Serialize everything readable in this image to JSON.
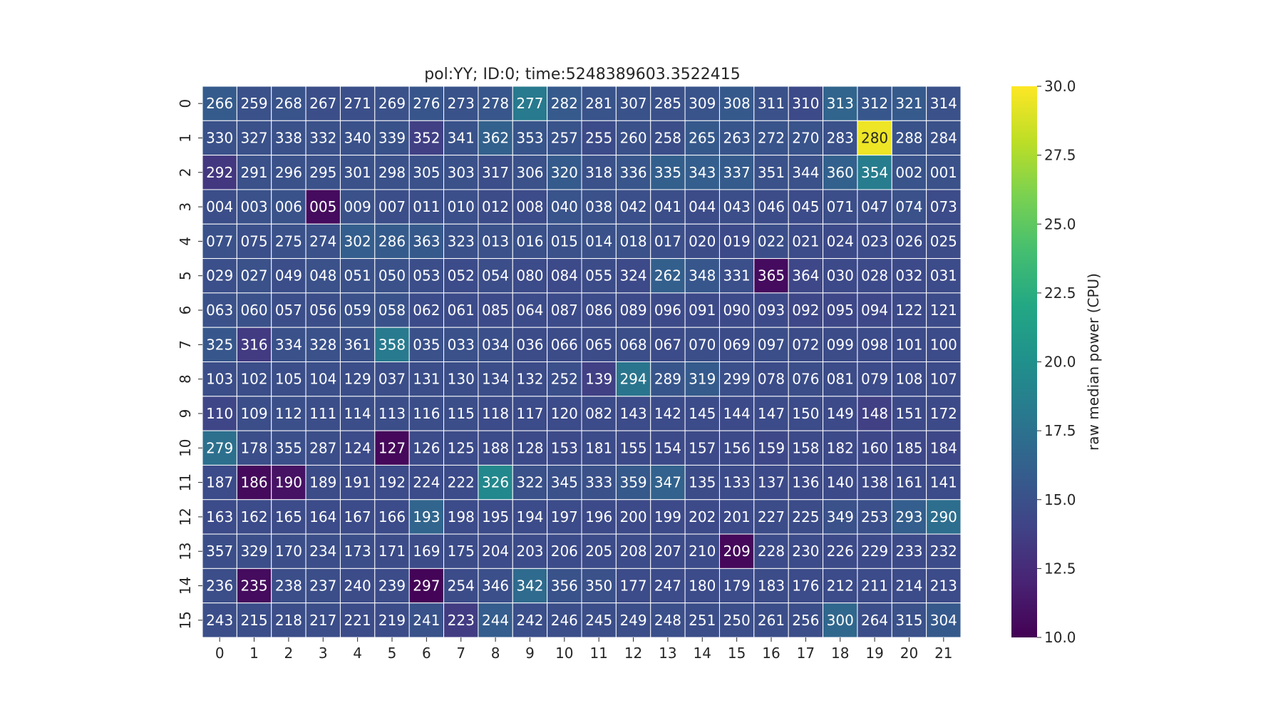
{
  "chart_data": {
    "type": "heatmap",
    "title": "pol:YY; ID:0; time:5248389603.3522415",
    "xlabel": "",
    "ylabel": "",
    "x_ticks": [
      "0",
      "1",
      "2",
      "3",
      "4",
      "5",
      "6",
      "7",
      "8",
      "9",
      "10",
      "11",
      "12",
      "13",
      "14",
      "15",
      "16",
      "17",
      "18",
      "19",
      "20",
      "21"
    ],
    "y_ticks": [
      "0",
      "1",
      "2",
      "3",
      "4",
      "5",
      "6",
      "7",
      "8",
      "9",
      "10",
      "11",
      "12",
      "13",
      "14",
      "15"
    ],
    "cell_labels": [
      [
        "266",
        "259",
        "268",
        "267",
        "271",
        "269",
        "276",
        "273",
        "278",
        "277",
        "282",
        "281",
        "307",
        "285",
        "309",
        "308",
        "311",
        "310",
        "313",
        "312",
        "321",
        "314"
      ],
      [
        "330",
        "327",
        "338",
        "332",
        "340",
        "339",
        "352",
        "341",
        "362",
        "353",
        "257",
        "255",
        "260",
        "258",
        "265",
        "263",
        "272",
        "270",
        "283",
        "280",
        "288",
        "284"
      ],
      [
        "292",
        "291",
        "296",
        "295",
        "301",
        "298",
        "305",
        "303",
        "317",
        "306",
        "320",
        "318",
        "336",
        "335",
        "343",
        "337",
        "351",
        "344",
        "360",
        "354",
        "002",
        "001"
      ],
      [
        "004",
        "003",
        "006",
        "005",
        "009",
        "007",
        "011",
        "010",
        "012",
        "008",
        "040",
        "038",
        "042",
        "041",
        "044",
        "043",
        "046",
        "045",
        "071",
        "047",
        "074",
        "073"
      ],
      [
        "077",
        "075",
        "275",
        "274",
        "302",
        "286",
        "363",
        "323",
        "013",
        "016",
        "015",
        "014",
        "018",
        "017",
        "020",
        "019",
        "022",
        "021",
        "024",
        "023",
        "026",
        "025"
      ],
      [
        "029",
        "027",
        "049",
        "048",
        "051",
        "050",
        "053",
        "052",
        "054",
        "080",
        "084",
        "055",
        "324",
        "262",
        "348",
        "331",
        "365",
        "364",
        "030",
        "028",
        "032",
        "031"
      ],
      [
        "063",
        "060",
        "057",
        "056",
        "059",
        "058",
        "062",
        "061",
        "085",
        "064",
        "087",
        "086",
        "089",
        "096",
        "091",
        "090",
        "093",
        "092",
        "095",
        "094",
        "122",
        "121"
      ],
      [
        "325",
        "316",
        "334",
        "328",
        "361",
        "358",
        "035",
        "033",
        "034",
        "036",
        "066",
        "065",
        "068",
        "067",
        "070",
        "069",
        "097",
        "072",
        "099",
        "098",
        "101",
        "100"
      ],
      [
        "103",
        "102",
        "105",
        "104",
        "129",
        "037",
        "131",
        "130",
        "134",
        "132",
        "252",
        "139",
        "294",
        "289",
        "319",
        "299",
        "078",
        "076",
        "081",
        "079",
        "108",
        "107"
      ],
      [
        "110",
        "109",
        "112",
        "111",
        "114",
        "113",
        "116",
        "115",
        "118",
        "117",
        "120",
        "082",
        "143",
        "142",
        "145",
        "144",
        "147",
        "150",
        "149",
        "148",
        "151",
        "172"
      ],
      [
        "279",
        "178",
        "355",
        "287",
        "124",
        "127",
        "126",
        "125",
        "188",
        "128",
        "153",
        "181",
        "155",
        "154",
        "157",
        "156",
        "159",
        "158",
        "182",
        "160",
        "185",
        "184"
      ],
      [
        "187",
        "186",
        "190",
        "189",
        "191",
        "192",
        "224",
        "222",
        "326",
        "322",
        "345",
        "333",
        "359",
        "347",
        "135",
        "133",
        "137",
        "136",
        "140",
        "138",
        "161",
        "141"
      ],
      [
        "163",
        "162",
        "165",
        "164",
        "167",
        "166",
        "193",
        "198",
        "195",
        "194",
        "197",
        "196",
        "200",
        "199",
        "202",
        "201",
        "227",
        "225",
        "349",
        "253",
        "293",
        "290"
      ],
      [
        "357",
        "329",
        "170",
        "234",
        "173",
        "171",
        "169",
        "175",
        "204",
        "203",
        "206",
        "205",
        "208",
        "207",
        "210",
        "209",
        "228",
        "230",
        "226",
        "229",
        "233",
        "232"
      ],
      [
        "236",
        "235",
        "238",
        "237",
        "240",
        "239",
        "297",
        "254",
        "346",
        "342",
        "356",
        "350",
        "177",
        "247",
        "180",
        "179",
        "183",
        "176",
        "212",
        "211",
        "214",
        "213"
      ],
      [
        "243",
        "215",
        "218",
        "217",
        "221",
        "219",
        "241",
        "223",
        "244",
        "242",
        "246",
        "245",
        "249",
        "248",
        "251",
        "250",
        "261",
        "256",
        "300",
        "264",
        "315",
        "304"
      ]
    ],
    "values": [
      [
        15.8,
        15.0,
        15.2,
        14.8,
        14.9,
        15.0,
        15.3,
        15.1,
        15.4,
        18.2,
        15.7,
        15.2,
        15.1,
        15.0,
        15.2,
        15.6,
        15.0,
        14.5,
        16.5,
        15.5,
        15.7,
        15.0
      ],
      [
        15.0,
        15.0,
        15.0,
        15.0,
        15.0,
        15.1,
        13.8,
        15.1,
        16.2,
        15.3,
        15.2,
        14.6,
        15.0,
        14.8,
        15.6,
        15.3,
        15.2,
        15.2,
        15.0,
        29.5,
        15.1,
        15.0
      ],
      [
        13.3,
        15.0,
        15.0,
        15.0,
        15.0,
        15.0,
        15.0,
        15.0,
        14.8,
        15.0,
        15.8,
        15.0,
        15.4,
        16.1,
        16.0,
        15.8,
        15.0,
        15.0,
        16.2,
        18.4,
        15.2,
        15.0
      ],
      [
        14.8,
        15.0,
        15.1,
        10.6,
        15.0,
        14.8,
        14.8,
        14.9,
        14.7,
        14.6,
        15.2,
        15.0,
        14.9,
        14.8,
        14.7,
        14.8,
        14.7,
        14.6,
        14.8,
        14.8,
        15.0,
        14.6
      ],
      [
        15.0,
        14.9,
        15.0,
        15.0,
        16.0,
        15.8,
        15.6,
        15.0,
        15.0,
        15.0,
        15.0,
        15.0,
        15.0,
        14.9,
        14.7,
        14.5,
        14.8,
        14.6,
        14.5,
        14.6,
        14.6,
        14.7
      ],
      [
        14.9,
        15.0,
        14.8,
        15.0,
        15.0,
        15.0,
        14.8,
        14.6,
        14.8,
        14.6,
        14.5,
        14.7,
        14.5,
        16.1,
        15.5,
        14.9,
        10.6,
        14.4,
        14.5,
        14.5,
        14.5,
        14.6
      ],
      [
        15.0,
        15.0,
        14.8,
        14.8,
        15.0,
        15.1,
        14.6,
        14.6,
        14.5,
        14.6,
        14.6,
        14.6,
        14.5,
        14.5,
        14.5,
        14.5,
        14.5,
        14.4,
        14.4,
        14.4,
        14.5,
        14.6
      ],
      [
        15.5,
        13.5,
        15.0,
        15.0,
        15.0,
        18.2,
        15.0,
        15.0,
        14.9,
        14.7,
        14.7,
        14.7,
        14.8,
        14.6,
        14.8,
        14.7,
        14.8,
        14.7,
        14.7,
        14.6,
        14.6,
        14.6
      ],
      [
        14.8,
        14.8,
        14.8,
        14.9,
        14.8,
        14.8,
        14.8,
        14.8,
        14.8,
        14.7,
        14.9,
        13.8,
        17.8,
        15.3,
        15.8,
        14.9,
        14.7,
        14.8,
        14.7,
        14.6,
        14.6,
        14.6
      ],
      [
        14.2,
        14.8,
        14.9,
        14.8,
        14.8,
        14.8,
        14.8,
        14.8,
        14.6,
        14.6,
        14.6,
        14.6,
        14.6,
        14.6,
        14.6,
        14.5,
        14.6,
        14.6,
        14.5,
        13.8,
        14.5,
        14.5
      ],
      [
        17.4,
        14.8,
        14.9,
        14.8,
        14.6,
        10.4,
        14.6,
        14.6,
        14.6,
        14.5,
        14.5,
        14.6,
        14.5,
        14.5,
        14.5,
        14.5,
        14.4,
        14.5,
        14.5,
        14.4,
        14.4,
        14.4
      ],
      [
        14.6,
        10.5,
        11.0,
        14.7,
        14.6,
        14.6,
        14.6,
        14.6,
        19.3,
        15.0,
        15.0,
        15.0,
        15.6,
        16.3,
        14.7,
        14.6,
        14.5,
        14.5,
        14.5,
        14.5,
        14.6,
        14.6
      ],
      [
        14.6,
        14.6,
        14.6,
        14.6,
        14.6,
        14.6,
        16.5,
        14.6,
        14.6,
        14.6,
        14.6,
        14.5,
        14.5,
        14.5,
        14.5,
        14.5,
        14.7,
        14.7,
        15.0,
        14.9,
        16.0,
        17.2
      ],
      [
        14.8,
        14.8,
        14.8,
        14.8,
        14.8,
        14.7,
        14.7,
        14.7,
        14.6,
        14.6,
        14.6,
        14.6,
        14.6,
        14.6,
        14.6,
        10.4,
        14.6,
        14.6,
        14.5,
        14.5,
        14.5,
        14.6
      ],
      [
        14.8,
        10.6,
        14.8,
        14.8,
        14.7,
        14.7,
        10.2,
        14.7,
        14.9,
        17.0,
        15.1,
        15.0,
        14.6,
        14.6,
        14.6,
        14.6,
        14.7,
        14.6,
        14.6,
        14.6,
        14.6,
        14.6
      ],
      [
        14.8,
        14.8,
        14.8,
        14.8,
        14.7,
        14.7,
        15.1,
        13.6,
        15.9,
        14.9,
        14.8,
        14.8,
        14.8,
        14.9,
        14.8,
        14.8,
        14.8,
        14.8,
        16.7,
        14.8,
        15.0,
        15.6
      ]
    ],
    "vmin": 10.0,
    "vmax": 30.0,
    "colormap": "viridis",
    "colorbar": {
      "label": "raw median power (CPU)",
      "ticks": [
        "10.0",
        "12.5",
        "15.0",
        "17.5",
        "20.0",
        "22.5",
        "25.0",
        "27.5",
        "30.0"
      ],
      "tick_values": [
        10.0,
        12.5,
        15.0,
        17.5,
        20.0,
        22.5,
        25.0,
        27.5,
        30.0
      ]
    }
  }
}
